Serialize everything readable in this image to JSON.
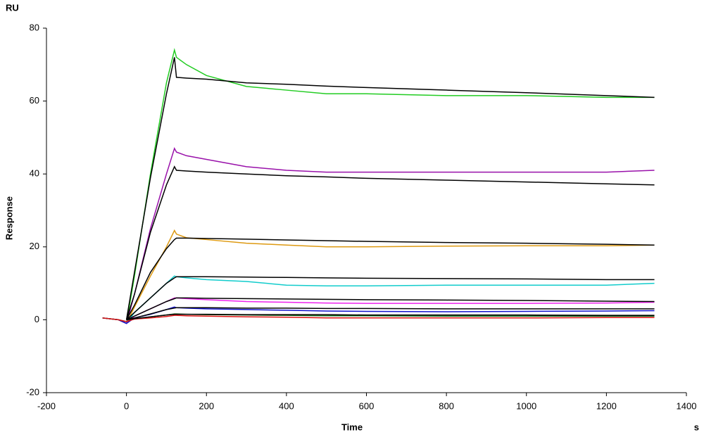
{
  "chart_data": {
    "type": "line",
    "y_unit": "RU",
    "y_label": "Response",
    "x_label": "Time",
    "x_unit": "s",
    "x": [
      -60,
      -20,
      0,
      20,
      60,
      100,
      120,
      125,
      150,
      200,
      300,
      400,
      500,
      600,
      800,
      1000,
      1200,
      1320
    ],
    "series": [
      {
        "color": "#22cc22",
        "values": [
          0.5,
          0,
          -1,
          12,
          40,
          65,
          74,
          72,
          70,
          67,
          64,
          63,
          62,
          62,
          61.5,
          61.5,
          61,
          61
        ]
      },
      {
        "color": "#9911aa",
        "values": [
          0.5,
          0,
          -1,
          7,
          25,
          40,
          47,
          46,
          45,
          44,
          42,
          41,
          40.5,
          40.5,
          40.5,
          40.5,
          40.5,
          41
        ]
      },
      {
        "color": "#dd9911",
        "values": [
          0.5,
          0,
          -1,
          3.5,
          12,
          20,
          24.5,
          23.5,
          22.5,
          22,
          21,
          20.5,
          20,
          20,
          20.2,
          20.3,
          20.3,
          20.5
        ]
      },
      {
        "color": "#11cccc",
        "values": [
          0.5,
          0,
          -1,
          2,
          6,
          10,
          12,
          11.8,
          11.5,
          11,
          10.5,
          9.5,
          9.3,
          9.3,
          9.5,
          9.5,
          9.5,
          10
        ]
      },
      {
        "color": "#ee22ee",
        "values": [
          0.5,
          0,
          -1,
          1,
          3,
          5,
          6,
          6,
          5.8,
          5.5,
          5,
          4.8,
          4.6,
          4.5,
          4.5,
          4.5,
          4.6,
          4.8
        ]
      },
      {
        "color": "#1111cc",
        "values": [
          0.5,
          0,
          -1,
          0.5,
          1.5,
          2.8,
          3.5,
          3.3,
          3.2,
          3,
          2.8,
          2.6,
          2.4,
          2.3,
          2.2,
          2.3,
          2.4,
          2.5
        ]
      },
      {
        "color": "#116611",
        "values": [
          0.5,
          0,
          -0.5,
          0.3,
          0.8,
          1.3,
          1.6,
          1.6,
          1.5,
          1.4,
          1.3,
          1.2,
          1.1,
          1.1,
          1,
          1,
          1,
          1
        ]
      },
      {
        "color": "#dd1111",
        "values": [
          0.5,
          0,
          -0.5,
          0.2,
          0.5,
          0.9,
          1.2,
          1.2,
          1.1,
          1,
          0.8,
          0.7,
          0.5,
          0.5,
          0.5,
          0.5,
          0.6,
          0.6
        ]
      },
      {
        "color": "#000000",
        "values": [
          null,
          null,
          0,
          13,
          39,
          62,
          72,
          66.5,
          66.3,
          66,
          65,
          64.6,
          64.1,
          63.7,
          63,
          62.3,
          61.5,
          61
        ]
      },
      {
        "color": "#000000",
        "values": [
          null,
          null,
          0,
          7,
          24,
          37,
          42,
          41,
          40.8,
          40.5,
          40,
          39.5,
          39.2,
          38.8,
          38.3,
          37.8,
          37.3,
          37
        ]
      },
      {
        "color": "#000000",
        "values": [
          null,
          null,
          0,
          4,
          13,
          19.5,
          22,
          22.4,
          22.4,
          22.3,
          22.1,
          21.9,
          21.7,
          21.5,
          21.2,
          21,
          20.7,
          20.5
        ]
      },
      {
        "color": "#000000",
        "values": [
          null,
          null,
          0,
          2,
          6,
          10,
          11.5,
          11.8,
          11.8,
          11.8,
          11.7,
          11.6,
          11.5,
          11.4,
          11.3,
          11.2,
          11,
          11
        ]
      },
      {
        "color": "#000000",
        "values": [
          null,
          null,
          0,
          1,
          3,
          5,
          5.8,
          6,
          6,
          5.9,
          5.8,
          5.7,
          5.6,
          5.5,
          5.4,
          5.3,
          5.1,
          5
        ]
      },
      {
        "color": "#000000",
        "values": [
          null,
          null,
          0,
          0.5,
          1.6,
          2.8,
          3.2,
          3.3,
          3.3,
          3.3,
          3.2,
          3.2,
          3.1,
          3.1,
          3,
          3,
          3,
          3
        ]
      },
      {
        "color": "#000000",
        "values": [
          null,
          null,
          0,
          0.3,
          0.8,
          1.3,
          1.5,
          1.5,
          1.5,
          1.5,
          1.4,
          1.4,
          1.4,
          1.3,
          1.3,
          1.3,
          1.2,
          1.2
        ]
      }
    ],
    "xlim": [
      -200,
      1400
    ],
    "xticks": [
      -200,
      0,
      200,
      400,
      600,
      800,
      1000,
      1200,
      1400
    ],
    "ylim": [
      -20,
      80
    ],
    "yticks": [
      -20,
      0,
      20,
      40,
      60,
      80
    ]
  }
}
